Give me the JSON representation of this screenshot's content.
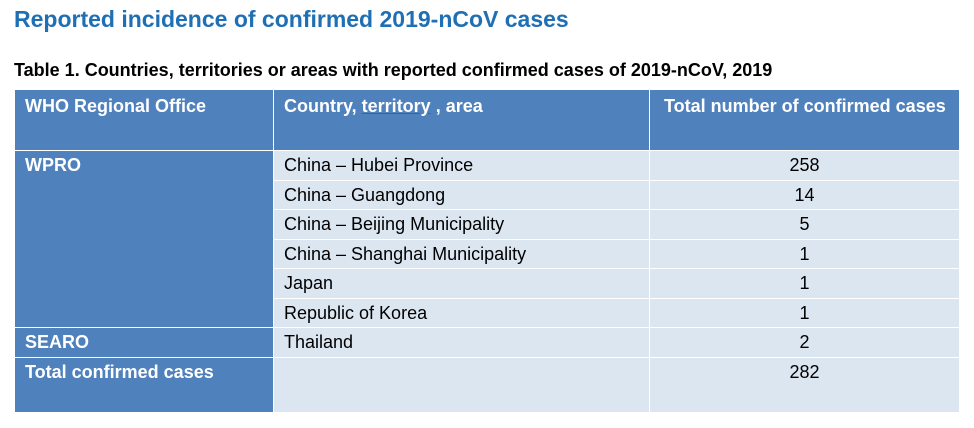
{
  "heading": "Reported incidence of confirmed 2019-nCoV cases",
  "caption": "Table 1. Countries, territories or areas with reported confirmed cases of 2019-nCoV, 2019",
  "table": {
    "headers": {
      "region": "WHO Regional Office",
      "country_prefix": "Country, ",
      "country_underlined": "territory",
      "country_suffix": " , area",
      "count": "Total number of confirmed cases"
    },
    "regions": [
      {
        "name": "WPRO",
        "rows": [
          {
            "country": "China – Hubei Province",
            "cases": "258"
          },
          {
            "country": "China – Guangdong",
            "cases": "14"
          },
          {
            "country": "China – Beijing Municipality",
            "cases": "5"
          },
          {
            "country": "China – Shanghai Municipality",
            "cases": "1"
          },
          {
            "country": "Japan",
            "cases": "1"
          },
          {
            "country": "Republic of Korea",
            "cases": "1"
          }
        ]
      },
      {
        "name": "SEARO",
        "rows": [
          {
            "country": "Thailand",
            "cases": "2"
          }
        ]
      }
    ],
    "total": {
      "label": "Total confirmed cases",
      "country": "",
      "cases": "282"
    }
  },
  "colors": {
    "heading": "#1f6fb5",
    "header_fill": "#4f81bd",
    "body_fill": "#dce6f1"
  }
}
